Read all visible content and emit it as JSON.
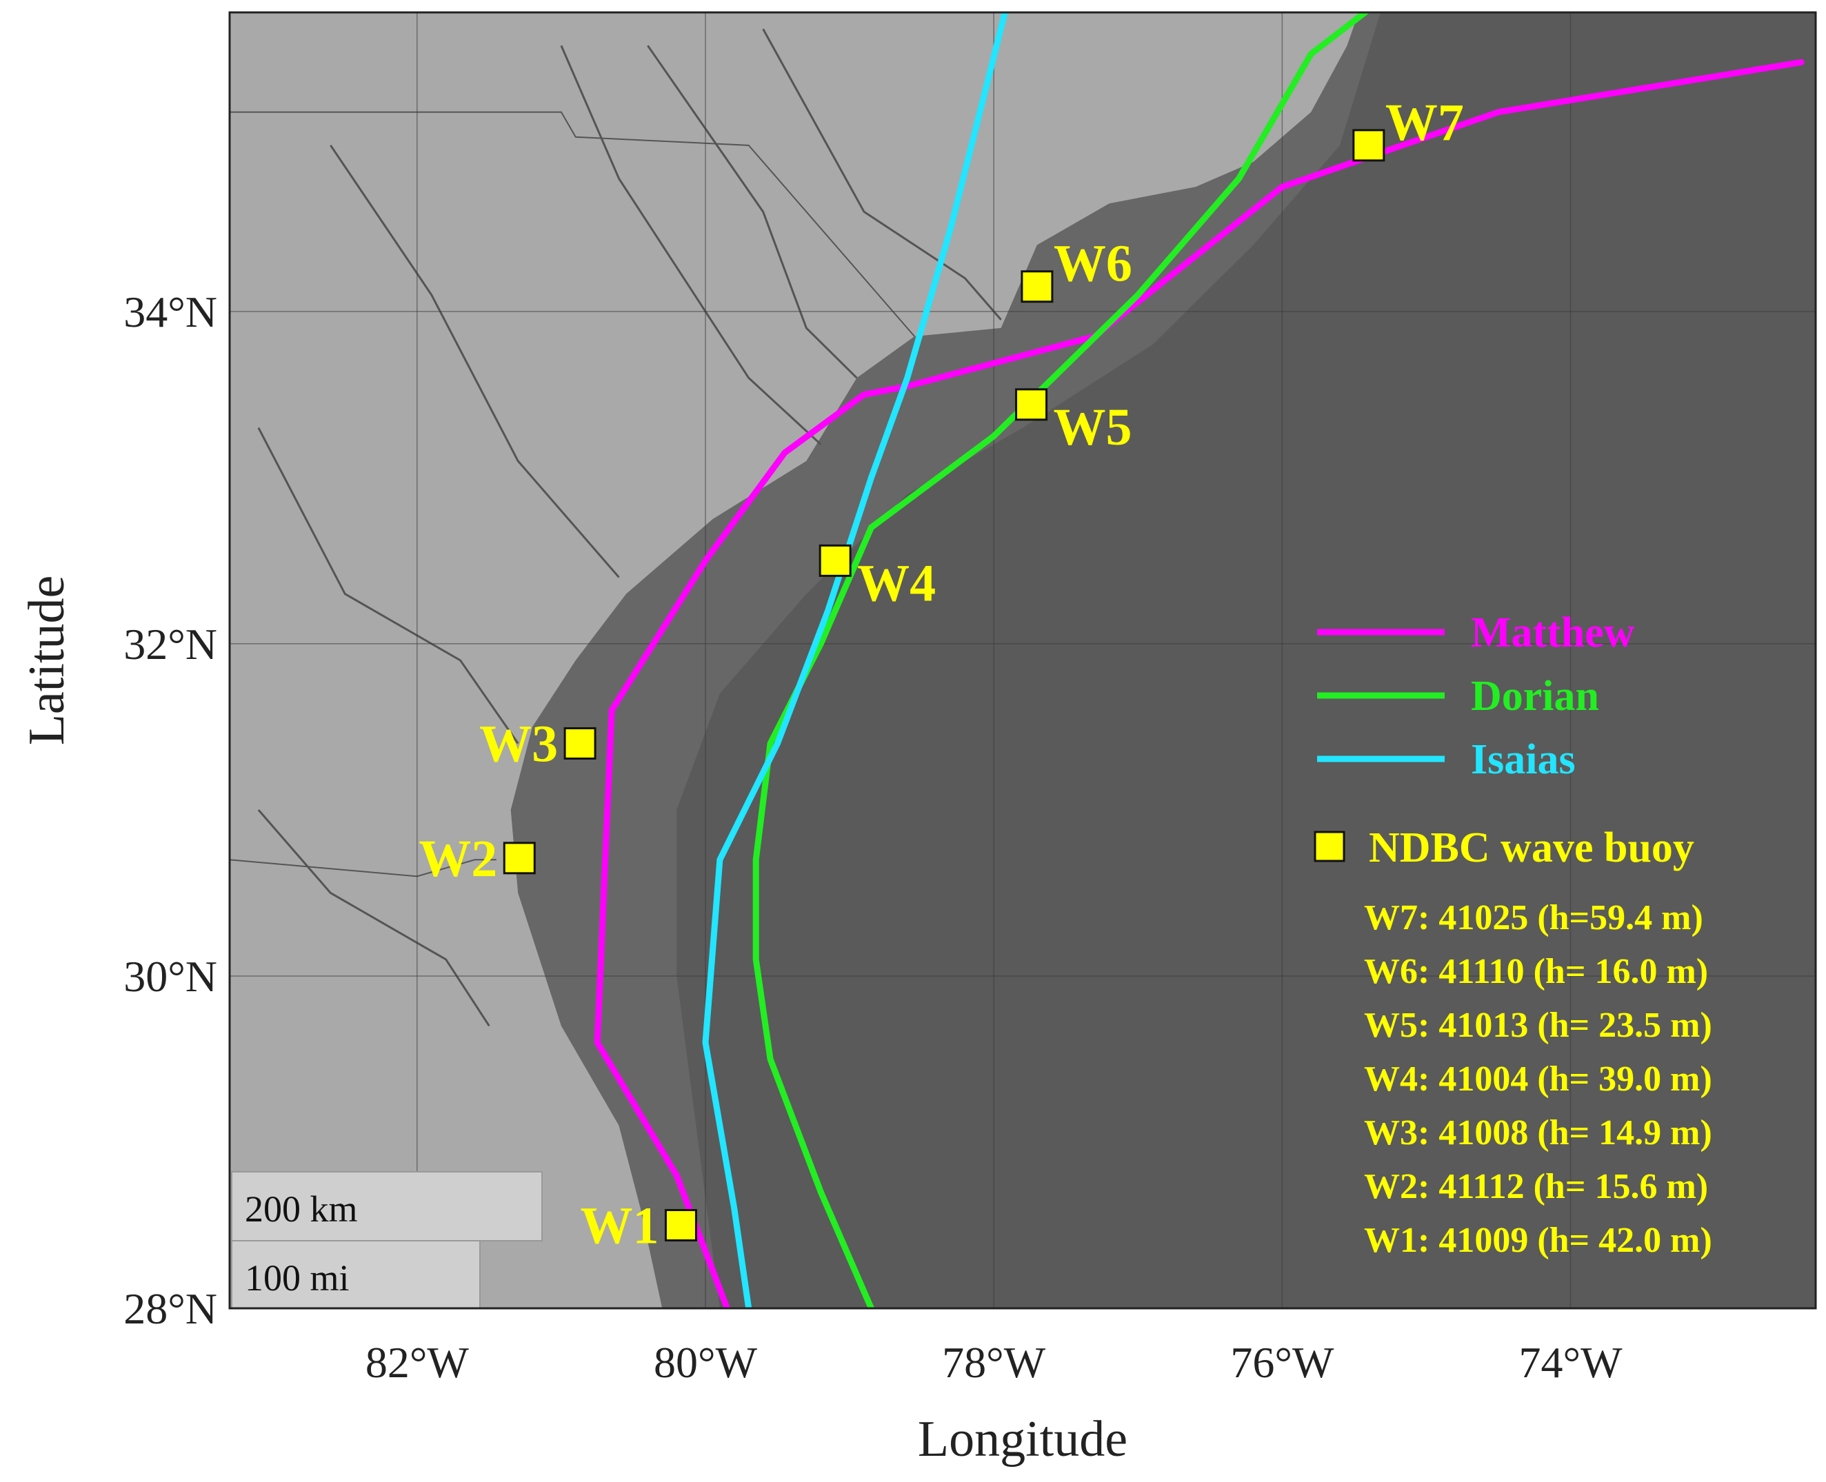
{
  "axes": {
    "xlabel": "Longitude",
    "ylabel": "Latitude",
    "lon_range": [
      -83.3,
      -72.3
    ],
    "lat_range": [
      28.0,
      35.8
    ],
    "x_ticks": [
      {
        "value": -82,
        "label": "82°W"
      },
      {
        "value": -80,
        "label": "80°W"
      },
      {
        "value": -78,
        "label": "78°W"
      },
      {
        "value": -76,
        "label": "76°W"
      },
      {
        "value": -74,
        "label": "74°W"
      }
    ],
    "y_ticks": [
      {
        "value": 28,
        "label": "28°N"
      },
      {
        "value": 30,
        "label": "30°N"
      },
      {
        "value": 32,
        "label": "32°N"
      },
      {
        "value": 34,
        "label": "34°N"
      }
    ],
    "grid": true
  },
  "colors": {
    "ocean": "#5a5a5a",
    "land": "#a9a9a9",
    "shelf": "#676767",
    "buoy": "#ffff00",
    "Matthew": "#ff00ff",
    "Dorian": "#22ee22",
    "Isaias": "#22e5ff"
  },
  "tracks": [
    {
      "name": "Matthew",
      "color": "#ff00ff",
      "points": [
        [
          -79.85,
          28.0
        ],
        [
          -80.2,
          28.8
        ],
        [
          -80.75,
          29.6
        ],
        [
          -80.7,
          30.6
        ],
        [
          -80.65,
          31.6
        ],
        [
          -80.0,
          32.5
        ],
        [
          -79.45,
          33.15
        ],
        [
          -78.9,
          33.5
        ],
        [
          -78.6,
          33.55
        ],
        [
          -77.3,
          33.85
        ],
        [
          -76.0,
          34.75
        ],
        [
          -74.5,
          35.2
        ],
        [
          -72.4,
          35.5
        ]
      ]
    },
    {
      "name": "Dorian",
      "color": "#22ee22",
      "points": [
        [
          -78.85,
          28.0
        ],
        [
          -79.2,
          28.7
        ],
        [
          -79.55,
          29.5
        ],
        [
          -79.65,
          30.1
        ],
        [
          -79.65,
          30.7
        ],
        [
          -79.55,
          31.4
        ],
        [
          -79.2,
          32.0
        ],
        [
          -78.85,
          32.7
        ],
        [
          -78.0,
          33.25
        ],
        [
          -77.0,
          34.1
        ],
        [
          -76.3,
          34.8
        ],
        [
          -75.8,
          35.55
        ],
        [
          -75.05,
          36.05
        ]
      ]
    },
    {
      "name": "Isaias",
      "color": "#22e5ff",
      "points": [
        [
          -79.7,
          28.0
        ],
        [
          -79.8,
          28.6
        ],
        [
          -80.0,
          29.6
        ],
        [
          -79.9,
          30.7
        ],
        [
          -79.5,
          31.4
        ],
        [
          -79.15,
          32.2
        ],
        [
          -78.85,
          33.0
        ],
        [
          -78.6,
          33.6
        ],
        [
          -78.3,
          34.5
        ],
        [
          -77.85,
          36.05
        ]
      ]
    }
  ],
  "buoys": [
    {
      "id": "W1",
      "lon": -80.17,
      "lat": 28.5,
      "label_pos": "left"
    },
    {
      "id": "W2",
      "lon": -81.29,
      "lat": 30.71,
      "label_pos": "left"
    },
    {
      "id": "W3",
      "lon": -80.87,
      "lat": 31.4,
      "label_pos": "left"
    },
    {
      "id": "W4",
      "lon": -79.1,
      "lat": 32.5,
      "label_pos": "below-right"
    },
    {
      "id": "W5",
      "lon": -77.74,
      "lat": 33.44,
      "label_pos": "below-right"
    },
    {
      "id": "W6",
      "lon": -77.7,
      "lat": 34.15,
      "label_pos": "above-right"
    },
    {
      "id": "W7",
      "lon": -75.4,
      "lat": 35.0,
      "label_pos": "above-right"
    }
  ],
  "legend": {
    "placement": "right",
    "buoy_label": "NDBC wave buoy",
    "entries": [
      "W7: 41025 (h=59.4 m)",
      "W6: 41110 (h= 16.0 m)",
      "W5: 41013 (h= 23.5 m)",
      "W4: 41004 (h= 39.0 m)",
      "W3: 41008 (h= 14.9 m)",
      "W2: 41112 (h= 15.6 m)",
      "W1: 41009 (h= 42.0 m)"
    ]
  },
  "scale_bar": {
    "km_label": "200 km",
    "mi_label": "100 mi"
  }
}
